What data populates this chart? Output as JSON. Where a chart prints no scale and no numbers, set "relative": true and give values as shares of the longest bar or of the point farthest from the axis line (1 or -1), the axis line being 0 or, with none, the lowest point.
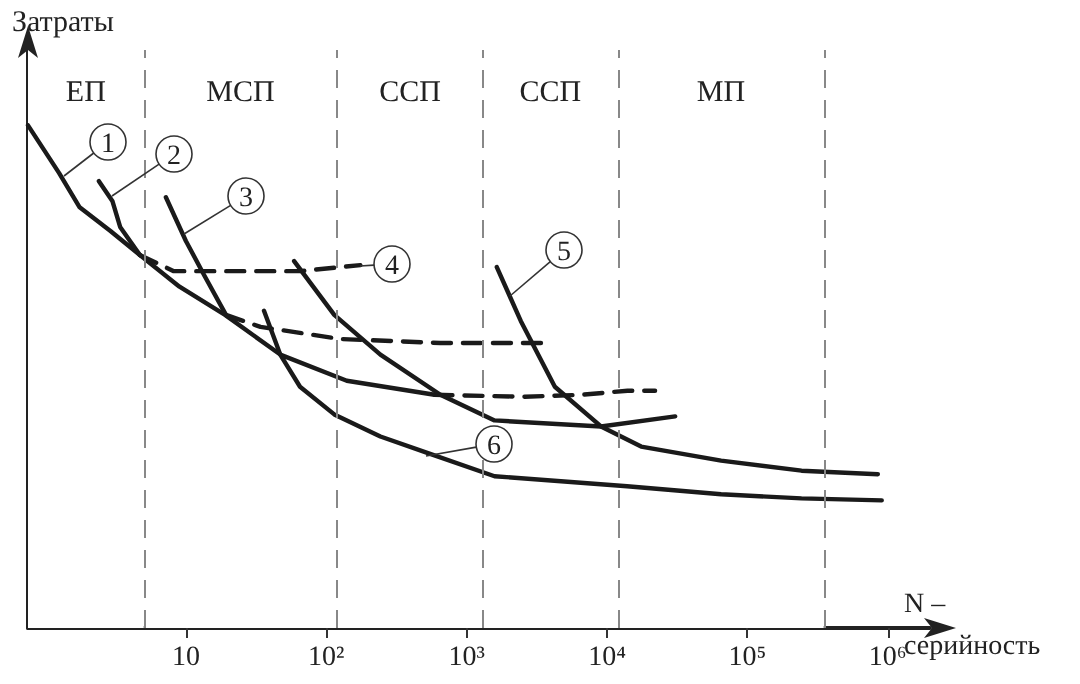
{
  "chart_data": {
    "type": "line",
    "ylabel": "Затраты",
    "xlabel": "N – серийность",
    "relative": true,
    "log": "x",
    "xlim": [
      0.75,
      2000000
    ],
    "xticks": [
      10,
      {
        "value": 100,
        "label": "10²"
      },
      {
        "value": 1000,
        "label": "10³"
      },
      {
        "value": 10000,
        "label": "10⁴"
      },
      {
        "value": 100000,
        "label": "10⁵"
      },
      {
        "value": 1000000,
        "label": "10⁶"
      }
    ],
    "marker": "none",
    "grid": false,
    "series": [
      {
        "color": "#1a1a1a",
        "line_style": "solid",
        "x": [
          0.75,
          1.25,
          1.75,
          2.9,
          4.7,
          9,
          19,
          47,
          140,
          590
        ],
        "values": [
          1.0,
          0.905,
          0.837,
          0.79,
          0.742,
          0.679,
          0.623,
          0.544,
          0.492,
          0.464
        ]
      },
      {
        "color": "#1a1a1a",
        "line_style": "dashed",
        "x": [
          590,
          2600,
          6500,
          14000,
          22000
        ],
        "values": [
          0.464,
          0.46,
          0.464,
          0.472,
          0.472
        ]
      },
      {
        "color": "#1a1a1a",
        "line_style": "solid",
        "x": [
          2.4,
          3,
          3.4,
          4.7
        ],
        "values": [
          0.889,
          0.849,
          0.798,
          0.742
        ]
      },
      {
        "color": "#1a1a1a",
        "line_style": "dashed",
        "x": [
          4.7,
          8.2,
          17.5,
          65,
          175
        ],
        "values": [
          0.742,
          0.71,
          0.71,
          0.71,
          0.722
        ]
      },
      {
        "color": "#1a1a1a",
        "line_style": "solid",
        "x": [
          7.2,
          10,
          13.5,
          19.3
        ],
        "values": [
          0.857,
          0.77,
          0.702,
          0.623
        ]
      },
      {
        "color": "#1a1a1a",
        "line_style": "dashed",
        "x": [
          19.3,
          34,
          126,
          650,
          3700
        ],
        "values": [
          0.623,
          0.599,
          0.575,
          0.567,
          0.567
        ]
      },
      {
        "color": "#1a1a1a",
        "line_style": "solid",
        "x": [
          59,
          114,
          243,
          650,
          1580,
          9060,
          30600
        ],
        "values": [
          0.73,
          0.623,
          0.544,
          0.464,
          0.413,
          0.401,
          0.421
        ]
      },
      {
        "color": "#1a1a1a",
        "line_style": "solid",
        "x": [
          1640,
          2430,
          4250,
          9060,
          17500,
          65000,
          243000,
          850000
        ],
        "values": [
          0.718,
          0.611,
          0.48,
          0.401,
          0.361,
          0.333,
          0.313,
          0.306
        ]
      },
      {
        "color": "#1a1a1a",
        "line_style": "solid",
        "x": [
          36,
          47,
          65,
          114,
          243,
          518,
          1580,
          13900,
          65000,
          243000,
          906000
        ],
        "values": [
          0.631,
          0.544,
          0.48,
          0.425,
          0.381,
          0.349,
          0.302,
          0.282,
          0.266,
          0.258,
          0.254
        ]
      }
    ],
    "ref_lines": [
      {
        "axis": "x",
        "value": 5,
        "color": "#888888",
        "line_style": "dashed"
      },
      {
        "axis": "x",
        "value": 120,
        "color": "#888888",
        "line_style": "dashed"
      },
      {
        "axis": "x",
        "value": 1300,
        "color": "#888888",
        "line_style": "dashed"
      },
      {
        "axis": "x",
        "value": 12000,
        "color": "#888888",
        "line_style": "dashed"
      },
      {
        "axis": "x",
        "value": 350000,
        "color": "#888888",
        "line_style": "dashed"
      }
    ],
    "bands": [
      {
        "axis": "x",
        "from": 0.75,
        "to": 5,
        "label": "ЕП",
        "color": "#ffffff"
      },
      {
        "axis": "x",
        "from": 5,
        "to": 120,
        "label": "МСП",
        "color": "#ffffff"
      },
      {
        "axis": "x",
        "from": 120,
        "to": 1300,
        "label": "ССП",
        "color": "#ffffff"
      },
      {
        "axis": "x",
        "from": 1300,
        "to": 12000,
        "label": "ССП",
        "color": "#ffffff"
      },
      {
        "axis": "x",
        "from": 12000,
        "to": 350000,
        "label": "МП",
        "color": "#ffffff"
      }
    ],
    "annotations": [
      {
        "text": "1",
        "x": 1.35,
        "y": 0.9
      },
      {
        "text": "2",
        "x": 3,
        "y": 0.86
      },
      {
        "text": "3",
        "x": 9.7,
        "y": 0.782
      },
      {
        "text": "4",
        "x": 175,
        "y": 0.722
      },
      {
        "text": "5",
        "x": 2050,
        "y": 0.659
      },
      {
        "text": "6",
        "x": 518,
        "y": 0.341
      }
    ]
  }
}
